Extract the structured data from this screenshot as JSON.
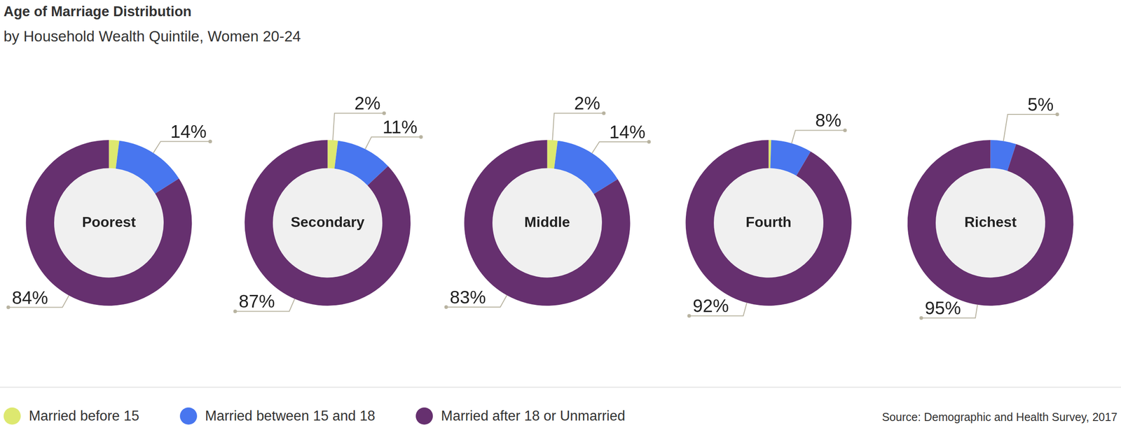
{
  "title": "Age of Marriage Distribution",
  "subtitle": "by Household Wealth Quintile, Women 20-24",
  "source": "Source: Demographic and Health Survey, 2017",
  "chart_data": [
    {
      "type": "doughnut",
      "title": "Poorest",
      "categories": [
        "Married before 15",
        "Married between 15 and 18",
        "Married after 18 or Unmarried"
      ],
      "colors": [
        "#dde86f",
        "#4876ef",
        "#66306f"
      ],
      "values": [
        2,
        14,
        84
      ],
      "value_labels": [
        null,
        "14%",
        "84%"
      ],
      "data_labels": true,
      "legend": "bottom"
    },
    {
      "type": "doughnut",
      "title": "Secondary",
      "categories": [
        "Married before 15",
        "Married between 15 and 18",
        "Married after 18 or Unmarried"
      ],
      "colors": [
        "#dde86f",
        "#4876ef",
        "#66306f"
      ],
      "values": [
        2,
        11,
        87
      ],
      "value_labels": [
        "2%",
        "11%",
        "87%"
      ],
      "data_labels": true,
      "legend": "bottom"
    },
    {
      "type": "doughnut",
      "title": "Middle",
      "categories": [
        "Married before 15",
        "Married between 15 and 18",
        "Married after 18 or Unmarried"
      ],
      "colors": [
        "#dde86f",
        "#4876ef",
        "#66306f"
      ],
      "values": [
        2,
        14,
        83
      ],
      "value_labels": [
        "2%",
        "14%",
        "83%"
      ],
      "data_labels": true,
      "legend": "bottom"
    },
    {
      "type": "doughnut",
      "title": "Fourth",
      "categories": [
        "Married before 15",
        "Married between 15 and 18",
        "Married after 18 or Unmarried"
      ],
      "colors": [
        "#dde86f",
        "#4876ef",
        "#66306f"
      ],
      "values": [
        0.5,
        8,
        92
      ],
      "value_labels": [
        null,
        "8%",
        "92%"
      ],
      "data_labels": true,
      "legend": "bottom"
    },
    {
      "type": "doughnut",
      "title": "Richest",
      "categories": [
        "Married before 15",
        "Married between 15 and 18",
        "Married after 18 or Unmarried"
      ],
      "colors": [
        "#dde86f",
        "#4876ef",
        "#66306f"
      ],
      "values": [
        0,
        5,
        95
      ],
      "value_labels": [
        null,
        "5%",
        "95%"
      ],
      "data_labels": true,
      "legend": "bottom"
    }
  ]
}
